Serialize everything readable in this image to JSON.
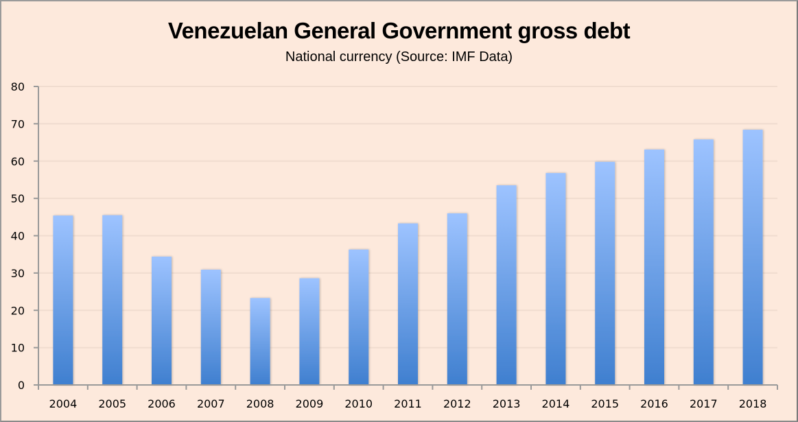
{
  "chart_data": {
    "type": "bar",
    "title": "Venezuelan General Government gross debt",
    "subtitle": "National currency (Source: IMF Data)",
    "xlabel": "",
    "ylabel": "",
    "categories": [
      "2004",
      "2005",
      "2006",
      "2007",
      "2008",
      "2009",
      "2010",
      "2011",
      "2012",
      "2013",
      "2014",
      "2015",
      "2016",
      "2017",
      "2018"
    ],
    "values": [
      45.4,
      45.5,
      34.4,
      30.9,
      23.3,
      28.6,
      36.3,
      43.3,
      46.0,
      53.5,
      56.8,
      59.8,
      63.1,
      65.8,
      68.4
    ],
    "ylim": [
      0,
      80
    ],
    "yticks": [
      "0",
      "10",
      "20",
      "30",
      "40",
      "50",
      "60",
      "70",
      "80"
    ],
    "grid": true,
    "legend": "none",
    "colors": {
      "background": "#fde9dc",
      "bar_top": "#9dc3ff",
      "bar_bottom": "#3f7fcf",
      "gridline": "#f0dccf",
      "axis": "#999999"
    }
  }
}
